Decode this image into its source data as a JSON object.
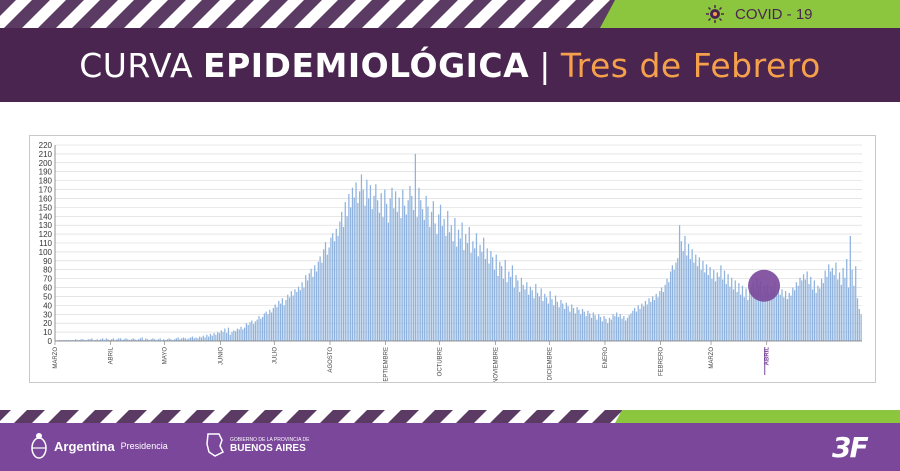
{
  "header": {
    "title_light": "CURVA",
    "title_bold": "EPIDEMIOLÓGICA",
    "separator": "|",
    "city": "Tres de Febrero",
    "badge": "COVID - 19",
    "colors": {
      "band": "#4a2550",
      "accent_green": "#8cc63f",
      "city": "#f5a04a",
      "stripe": "#5b3a63"
    }
  },
  "footer": {
    "argentina": "Argentina",
    "presidencia": "Presidencia",
    "gobierno": "GOBIERNO DE LA PROVINCIA DE",
    "buenos_aires": "BUENOS AIRES",
    "brand": "3F",
    "colors": {
      "band": "#7a479a",
      "accent_green": "#8cc63f"
    }
  },
  "chart_data": {
    "type": "bar",
    "title": "",
    "xlabel": "",
    "ylabel": "",
    "ylim": [
      0,
      220
    ],
    "y_ticks": [
      0,
      10,
      20,
      30,
      40,
      50,
      60,
      70,
      80,
      90,
      100,
      110,
      120,
      130,
      140,
      150,
      160,
      170,
      180,
      190,
      200,
      210,
      220
    ],
    "grid": true,
    "bar_color": "#8fb3de",
    "highlight_color": "#7a479a",
    "months": [
      {
        "label": "MARZO",
        "start": 0
      },
      {
        "label": "ABRIL",
        "start": 31
      },
      {
        "label": "MAYO",
        "start": 61
      },
      {
        "label": "JUNIO",
        "start": 92
      },
      {
        "label": "JULIO",
        "start": 122
      },
      {
        "label": "AGOSTO",
        "start": 153
      },
      {
        "label": "SEPTIEMBRE",
        "start": 184
      },
      {
        "label": "OCTUBRE",
        "start": 214
      },
      {
        "label": "NOVIEMBRE",
        "start": 245
      },
      {
        "label": "DICIEMBRE",
        "start": 275
      },
      {
        "label": "ENERO",
        "start": 306
      },
      {
        "label": "FEBRERO",
        "start": 337
      },
      {
        "label": "MARZO",
        "start": 365
      },
      {
        "label": "ABRIL",
        "start": 396,
        "highlight": true
      }
    ],
    "highlight_index": 394,
    "values": [
      0,
      1,
      1,
      1,
      1,
      1,
      1,
      1,
      1,
      1,
      1,
      2,
      1,
      1,
      2,
      2,
      1,
      1,
      2,
      2,
      3,
      1,
      1,
      2,
      1,
      2,
      3,
      1,
      3,
      2,
      1,
      2,
      3,
      1,
      2,
      3,
      3,
      1,
      2,
      3,
      2,
      1,
      2,
      3,
      2,
      1,
      2,
      3,
      4,
      1,
      3,
      2,
      1,
      2,
      3,
      2,
      1,
      2,
      3,
      1,
      2,
      1,
      2,
      3,
      2,
      1,
      2,
      3,
      4,
      2,
      3,
      4,
      3,
      2,
      3,
      4,
      5,
      3,
      4,
      3,
      5,
      4,
      6,
      4,
      7,
      5,
      8,
      6,
      9,
      7,
      10,
      9,
      12,
      10,
      14,
      9,
      15,
      7,
      10,
      12,
      11,
      14,
      13,
      16,
      13,
      15,
      20,
      18,
      21,
      23,
      19,
      22,
      24,
      28,
      25,
      27,
      31,
      33,
      30,
      35,
      32,
      37,
      41,
      38,
      45,
      42,
      48,
      40,
      46,
      52,
      49,
      56,
      51,
      58,
      55,
      61,
      57,
      66,
      60,
      74,
      68,
      76,
      81,
      72,
      85,
      78,
      89,
      95,
      88,
      103,
      111,
      97,
      105,
      116,
      121,
      112,
      126,
      118,
      134,
      145,
      128,
      156,
      140,
      165,
      150,
      172,
      161,
      178,
      155,
      168,
      187,
      170,
      152,
      181,
      160,
      175,
      148,
      163,
      176,
      158,
      144,
      166,
      139,
      170,
      154,
      133,
      160,
      172,
      149,
      168,
      145,
      161,
      138,
      170,
      152,
      142,
      158,
      174,
      163,
      147,
      210,
      139,
      172,
      158,
      148,
      136,
      163,
      151,
      128,
      145,
      157,
      132,
      120,
      142,
      153,
      129,
      137,
      118,
      146,
      122,
      130,
      112,
      138,
      106,
      125,
      115,
      133,
      102,
      120,
      110,
      128,
      99,
      112,
      104,
      121,
      95,
      108,
      100,
      116,
      92,
      104,
      87,
      101,
      94,
      80,
      97,
      73,
      89,
      84,
      70,
      91,
      66,
      78,
      72,
      85,
      60,
      74,
      68,
      55,
      71,
      63,
      58,
      66,
      52,
      61,
      57,
      48,
      64,
      54,
      50,
      59,
      45,
      53,
      49,
      42,
      56,
      47,
      40,
      51,
      44,
      38,
      46,
      42,
      36,
      43,
      39,
      33,
      41,
      37,
      31,
      38,
      35,
      30,
      36,
      33,
      28,
      34,
      31,
      26,
      32,
      29,
      24,
      30,
      27,
      22,
      28,
      25,
      20,
      26,
      24,
      30,
      28,
      32,
      27,
      30,
      25,
      28,
      23,
      26,
      29,
      31,
      34,
      37,
      33,
      40,
      36,
      42,
      39,
      45,
      41,
      48,
      44,
      50,
      46,
      53,
      49,
      56,
      60,
      55,
      63,
      70,
      66,
      78,
      85,
      80,
      88,
      93,
      130,
      112,
      101,
      118,
      96,
      109,
      92,
      103,
      88,
      97,
      84,
      94,
      80,
      90,
      77,
      86,
      74,
      83,
      70,
      80,
      67,
      77,
      72,
      85,
      69,
      79,
      64,
      75,
      61,
      71,
      58,
      68,
      55,
      65,
      52,
      62,
      49,
      59,
      46,
      56,
      60,
      66,
      58,
      70,
      63,
      67,
      55,
      62,
      58,
      64,
      54,
      61,
      57,
      66,
      53,
      60,
      52,
      58,
      49,
      56,
      47,
      54,
      51,
      60,
      57,
      66,
      62,
      71,
      68,
      75,
      69,
      78,
      64,
      72,
      58,
      68,
      54,
      62,
      59,
      70,
      65,
      79,
      72,
      86,
      78,
      82,
      74,
      88,
      69,
      77,
      63,
      82,
      71,
      92,
      60,
      118,
      80,
      62,
      84,
      48,
      36,
      30
    ]
  }
}
